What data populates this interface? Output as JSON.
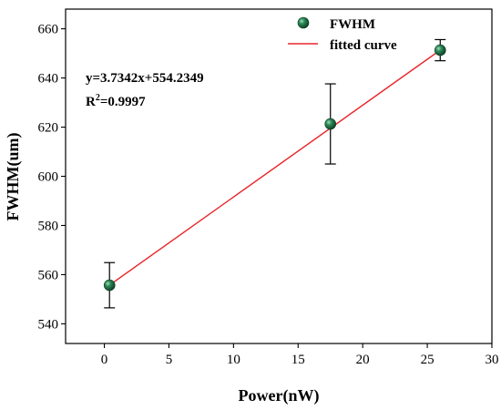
{
  "chart_data": {
    "type": "scatter",
    "xlabel": "Power(nW)",
    "ylabel": "FWHM(um)",
    "xlim": [
      -3,
      30
    ],
    "ylim": [
      532,
      668
    ],
    "x_ticks": [
      0,
      5,
      10,
      15,
      20,
      25,
      30
    ],
    "y_ticks": [
      540,
      560,
      580,
      600,
      620,
      640,
      660
    ],
    "grid": false,
    "legend": "top-right",
    "series": [
      {
        "name": "FWHM",
        "kind": "points",
        "color": "#1f5f3a",
        "points": [
          {
            "x": 0.4,
            "y": 555.7,
            "err_low": 9.2,
            "err_high": 9.2
          },
          {
            "x": 17.5,
            "y": 621.3,
            "err_low": 16.3,
            "err_high": 16.3
          },
          {
            "x": 26.0,
            "y": 651.3,
            "err_low": 4.3,
            "err_high": 4.3
          }
        ]
      },
      {
        "name": "fitted curve",
        "kind": "line",
        "color": "#e8262b",
        "slope": 3.7342,
        "intercept": 554.2349,
        "x_range": [
          0.4,
          26.0
        ]
      }
    ],
    "annotations": {
      "equation": "y=3.7342x+554.2349",
      "r2_base": "R",
      "r2_sup": "2",
      "r2_value": "=0.9997"
    }
  }
}
